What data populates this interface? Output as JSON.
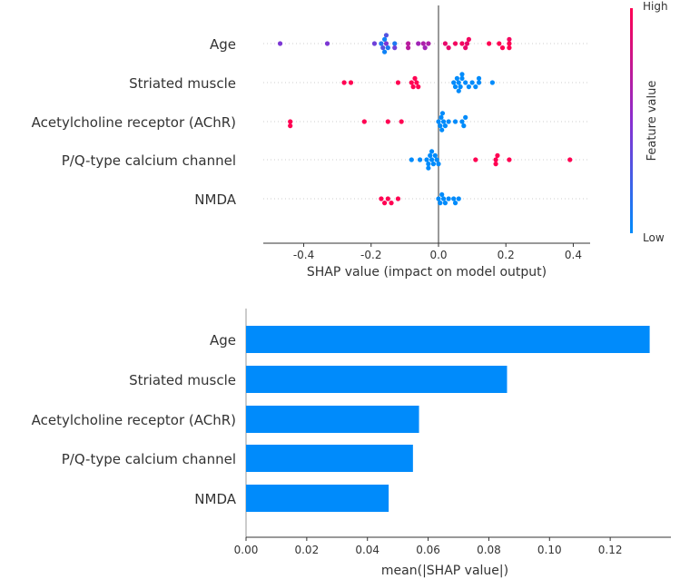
{
  "chart_data": [
    {
      "type": "scatter",
      "subtype": "shap-beeswarm",
      "features": [
        "Age",
        "Striated muscle",
        "Acetylcholine receptor (AChR)",
        "P/Q-type calcium channel",
        "NMDA"
      ],
      "xlabel": "SHAP value (impact on model output)",
      "xlim": [
        -0.52,
        0.45
      ],
      "xticks": [
        "-0.4",
        "-0.2",
        "0.0",
        "0.2",
        "0.4"
      ],
      "xtick_values": [
        -0.4,
        -0.2,
        0.0,
        0.2,
        0.4
      ],
      "colorbar": {
        "label": "Feature value",
        "high": "High",
        "low": "Low",
        "high_color": "#ff0052",
        "low_color": "#008bfb"
      },
      "points": [
        [
          [
            -0.47,
            0.45
          ],
          [
            -0.33,
            0.45
          ],
          [
            -0.19,
            0.4
          ],
          [
            -0.17,
            0.1
          ],
          [
            -0.165,
            0.3
          ],
          [
            -0.16,
            0.05
          ],
          [
            -0.155,
            0.45
          ],
          [
            -0.15,
            0.1
          ],
          [
            -0.16,
            0.05
          ],
          [
            -0.155,
            0.3
          ],
          [
            -0.13,
            0.1
          ],
          [
            -0.13,
            0.4
          ],
          [
            -0.09,
            0.7
          ],
          [
            -0.09,
            0.7
          ],
          [
            -0.06,
            0.6
          ],
          [
            -0.045,
            0.65
          ],
          [
            -0.04,
            0.6
          ],
          [
            -0.03,
            0.65
          ],
          [
            0.02,
            0.9
          ],
          [
            0.03,
            0.9
          ],
          [
            0.05,
            0.95
          ],
          [
            0.07,
            0.95
          ],
          [
            0.08,
            0.9
          ],
          [
            0.085,
            0.9
          ],
          [
            0.09,
            0.95
          ],
          [
            0.15,
            1
          ],
          [
            0.18,
            1
          ],
          [
            0.19,
            1
          ],
          [
            0.21,
            1
          ],
          [
            0.21,
            1
          ],
          [
            0.21,
            0.95
          ]
        ],
        [
          [
            -0.28,
            1
          ],
          [
            -0.26,
            1
          ],
          [
            -0.12,
            1
          ],
          [
            -0.08,
            1
          ],
          [
            -0.075,
            1
          ],
          [
            -0.07,
            1
          ],
          [
            -0.065,
            1
          ],
          [
            -0.06,
            1
          ],
          [
            0.045,
            0
          ],
          [
            0.05,
            0
          ],
          [
            0.055,
            0
          ],
          [
            0.06,
            0
          ],
          [
            0.06,
            0
          ],
          [
            0.065,
            0
          ],
          [
            0.07,
            0
          ],
          [
            0.07,
            0
          ],
          [
            0.08,
            0
          ],
          [
            0.09,
            0
          ],
          [
            0.1,
            0
          ],
          [
            0.11,
            0
          ],
          [
            0.12,
            0
          ],
          [
            0.12,
            0
          ],
          [
            0.16,
            0
          ]
        ],
        [
          [
            -0.44,
            1
          ],
          [
            -0.44,
            1
          ],
          [
            -0.22,
            1
          ],
          [
            -0.15,
            1
          ],
          [
            -0.11,
            1
          ],
          [
            0.0,
            0
          ],
          [
            0.005,
            0
          ],
          [
            0.008,
            0
          ],
          [
            0.01,
            0
          ],
          [
            0.012,
            0
          ],
          [
            0.015,
            0
          ],
          [
            0.02,
            0
          ],
          [
            0.03,
            0
          ],
          [
            0.05,
            0
          ],
          [
            0.07,
            0
          ],
          [
            0.075,
            0
          ],
          [
            0.08,
            0
          ]
        ],
        [
          [
            -0.08,
            0
          ],
          [
            -0.055,
            0
          ],
          [
            -0.035,
            0
          ],
          [
            -0.03,
            0
          ],
          [
            -0.025,
            0
          ],
          [
            -0.02,
            0
          ],
          [
            -0.015,
            0
          ],
          [
            -0.01,
            0
          ],
          [
            -0.005,
            0
          ],
          [
            0.0,
            0
          ],
          [
            -0.03,
            0
          ],
          [
            -0.02,
            0
          ],
          [
            0.11,
            1
          ],
          [
            0.17,
            1
          ],
          [
            0.17,
            1
          ],
          [
            0.175,
            1
          ],
          [
            0.21,
            1
          ],
          [
            0.39,
            1
          ]
        ],
        [
          [
            -0.17,
            1
          ],
          [
            -0.16,
            1
          ],
          [
            -0.15,
            1
          ],
          [
            -0.14,
            1
          ],
          [
            -0.12,
            1
          ],
          [
            0.0,
            0
          ],
          [
            0.005,
            0
          ],
          [
            0.01,
            0
          ],
          [
            0.015,
            0
          ],
          [
            0.02,
            0
          ],
          [
            0.03,
            0
          ],
          [
            0.045,
            0
          ],
          [
            0.05,
            0
          ],
          [
            0.06,
            0
          ]
        ]
      ]
    },
    {
      "type": "bar",
      "orientation": "horizontal",
      "categories": [
        "Age",
        "Striated muscle",
        "Acetylcholine receptor (AChR)",
        "P/Q-type calcium channel",
        "NMDA"
      ],
      "values": [
        0.133,
        0.086,
        0.057,
        0.055,
        0.047
      ],
      "xlabel": "mean(|SHAP value|)",
      "xlim": [
        0,
        0.14
      ],
      "xticks": [
        "0.00",
        "0.02",
        "0.04",
        "0.06",
        "0.08",
        "0.10",
        "0.12"
      ],
      "xtick_values": [
        0,
        0.02,
        0.04,
        0.06,
        0.08,
        0.1,
        0.12
      ],
      "bar_color": "#008bfb"
    }
  ]
}
